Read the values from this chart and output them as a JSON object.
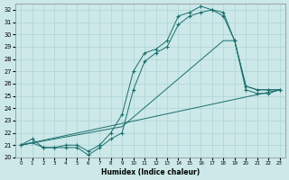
{
  "xlabel": "Humidex (Indice chaleur)",
  "xlim": [
    -0.5,
    23.5
  ],
  "ylim": [
    20,
    32.5
  ],
  "yticks": [
    20,
    21,
    22,
    23,
    24,
    25,
    26,
    27,
    28,
    29,
    30,
    31,
    32
  ],
  "xticks": [
    0,
    1,
    2,
    3,
    4,
    5,
    6,
    7,
    8,
    9,
    10,
    11,
    12,
    13,
    14,
    15,
    16,
    17,
    18,
    19,
    20,
    21,
    22,
    23
  ],
  "bg_color": "#cce8e8",
  "line_color": "#1a6e6e",
  "line1_x": [
    0,
    1,
    2,
    3,
    4,
    5,
    6,
    7,
    8,
    9,
    10,
    11,
    12,
    13,
    14,
    15,
    16,
    17,
    18,
    19,
    20,
    21,
    22,
    23
  ],
  "line1_y": [
    21.0,
    21.5,
    20.8,
    20.8,
    21.0,
    21.0,
    20.5,
    21.0,
    22.0,
    23.5,
    27.0,
    28.5,
    28.8,
    29.5,
    31.5,
    31.8,
    32.3,
    32.0,
    31.8,
    29.5,
    25.8,
    25.5,
    25.5,
    25.5
  ],
  "line2_x": [
    0,
    1,
    2,
    3,
    4,
    5,
    6,
    7,
    8,
    9,
    10,
    11,
    12,
    13,
    14,
    15,
    16,
    17,
    18,
    19,
    20,
    21,
    22,
    23
  ],
  "line2_y": [
    21.0,
    21.2,
    20.8,
    20.8,
    20.8,
    20.8,
    20.2,
    20.8,
    21.5,
    22.0,
    25.5,
    27.8,
    28.5,
    29.0,
    30.8,
    31.5,
    31.8,
    32.0,
    31.5,
    29.5,
    25.5,
    25.2,
    25.2,
    25.5
  ],
  "line3_x": [
    0,
    23
  ],
  "line3_y": [
    21.0,
    25.5
  ],
  "line4_x": [
    0,
    9,
    18,
    19,
    20,
    21,
    22,
    23
  ],
  "line4_y": [
    21.0,
    22.5,
    29.5,
    29.5,
    25.8,
    25.5,
    25.5,
    25.5
  ]
}
